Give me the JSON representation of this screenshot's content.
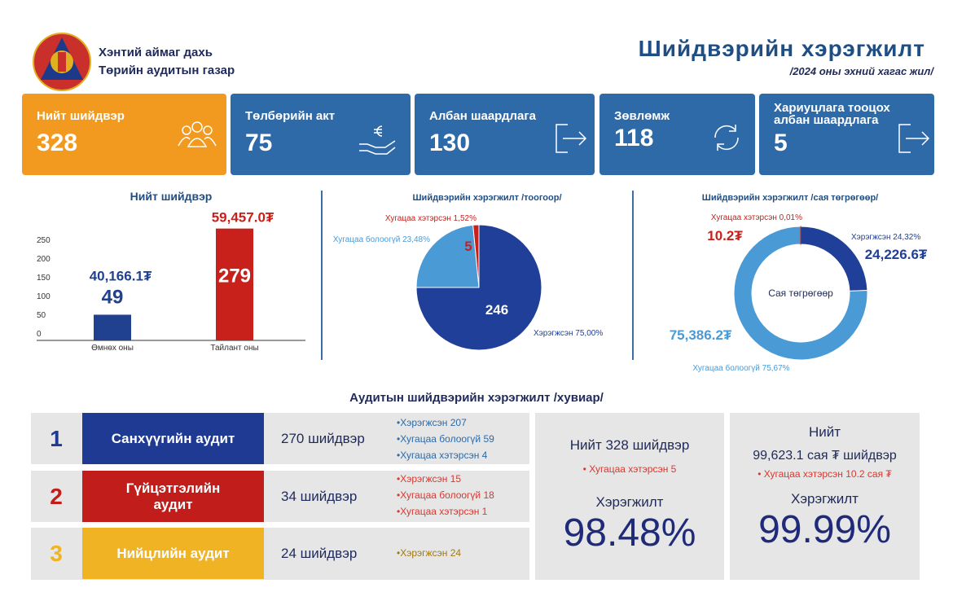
{
  "header": {
    "org_line1": "Хэнтий аймаг дахь",
    "org_line2": "Төрийн аудитын газар",
    "title": "Шийдвэрийн хэрэгжилт",
    "subtitle": "/2024 оны эхний хагас жил/"
  },
  "cards": [
    {
      "label": "Нийт шийдвэр",
      "value": "328"
    },
    {
      "label": "Төлбөрийн акт",
      "value": "75"
    },
    {
      "label": "Албан шаардлага",
      "value": "130"
    },
    {
      "label": "Зөвлөмж",
      "value": "118"
    },
    {
      "label": "Хариуцлага тооцох албан шаардлага",
      "value": "5"
    }
  ],
  "chart_data": [
    {
      "type": "bar",
      "title": "Нийт шийдвэр",
      "categories": [
        "Өмнөх оны",
        "Тайлант оны"
      ],
      "values": [
        49,
        279
      ],
      "colors": [
        "#20418f",
        "#c8201b"
      ],
      "annotations": [
        "40,166.1₮",
        "59,457.0₮"
      ],
      "ylim": [
        0,
        280
      ],
      "yticks": [
        0,
        50,
        100,
        150,
        200,
        250
      ],
      "grid": false
    },
    {
      "type": "pie",
      "title": "Шийдвэрийн хэрэгжилт /тоогоор/",
      "categories": [
        "Хэрэгжсэн 75,00%",
        "Хугацаа болоогүй 23,48%",
        "Хугацаа хэтэрсэн 1,52%"
      ],
      "values": [
        246,
        77,
        5
      ],
      "colors": [
        "#1f3f99",
        "#4a9ad6",
        "#c8201b"
      ]
    },
    {
      "type": "donut",
      "title": "Шийдвэрийн хэрэгжилт /сая төгрөгөөр/",
      "center_label": "Сая төгрөгөөр",
      "categories": [
        "Хэрэгжсэн 24,32%",
        "Хугацаа болоогүй 75,67%",
        "Хугацаа хэтэрсэн 0,01%"
      ],
      "values": [
        24226.6,
        75386.2,
        10.2
      ],
      "value_labels": [
        "24,226.6₮",
        "75,386.2₮",
        "10.2₮"
      ],
      "colors": [
        "#1f3f99",
        "#4a9ad6",
        "#c8201b"
      ]
    }
  ],
  "section_title": "Аудитын шийдвэрийн хэрэгжилт /хувиар/",
  "audits": [
    {
      "num": "1",
      "name": "Санхүүгийн аудит",
      "count": "270 шийдвэр",
      "items": [
        "Хэрэгжсэн 207",
        "Хугацаа болоогүй 59",
        "Хугацаа хэтэрсэн 4"
      ]
    },
    {
      "num": "2",
      "name": "Гүйцэтгэлийн аудит",
      "count": "34 шийдвэр",
      "items": [
        "Хэрэгжсэн 15",
        "Хугацаа болоогүй 18",
        "Хугацаа хэтэрсэн 1"
      ]
    },
    {
      "num": "3",
      "name": "Нийцлийн аудит",
      "count": "24 шийдвэр",
      "items": [
        "Хэрэгжсэн 24"
      ]
    }
  ],
  "summary": [
    {
      "title": "Нийт 328 шийдвэр",
      "note": "Хугацаа хэтэрсэн 5",
      "label": "Хэрэгжилт",
      "value": "98.48%"
    },
    {
      "title": "Нийт",
      "subtitle": "99,623.1 сая ₮ шийдвэр",
      "note": "Хугацаа хэтэрсэн 10.2 сая ₮",
      "label": "Хэрэгжилт",
      "value": "99.99%"
    }
  ]
}
